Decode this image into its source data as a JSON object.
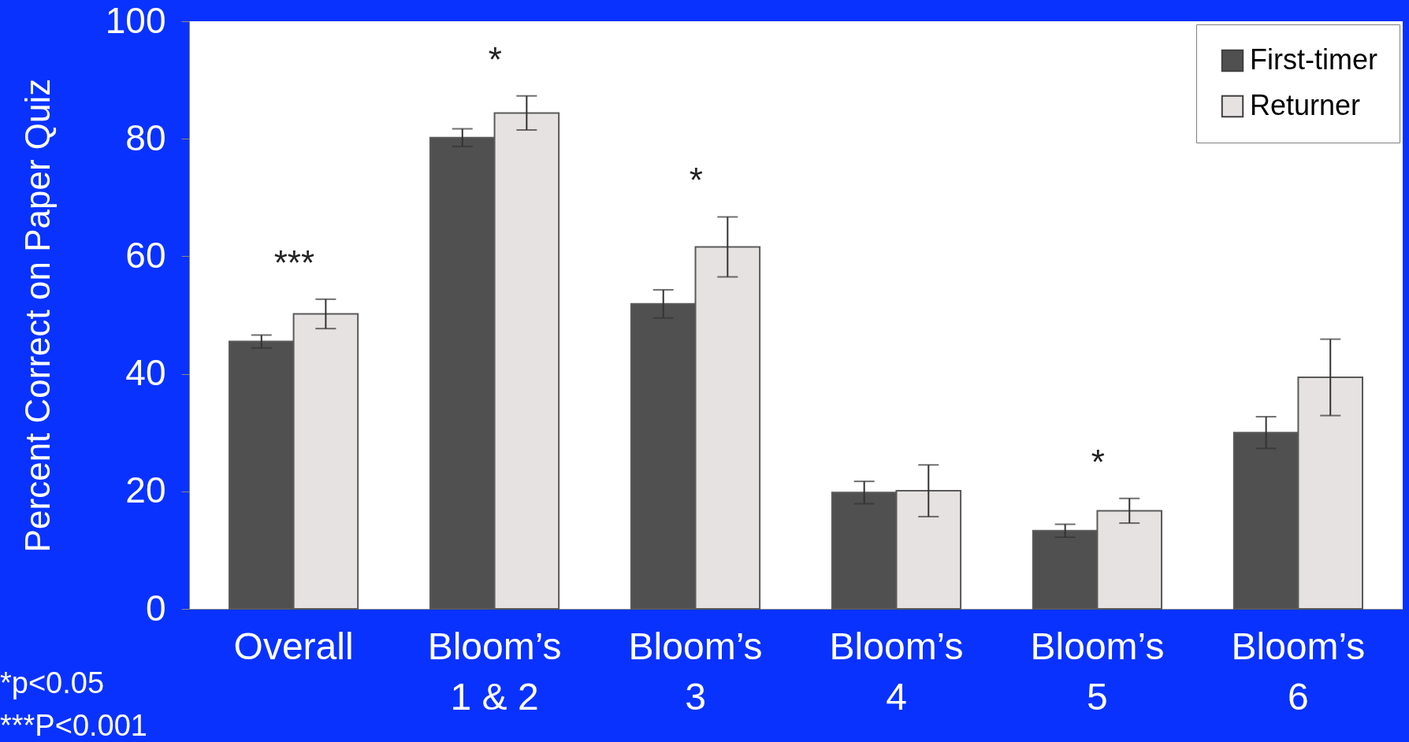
{
  "chart_data": {
    "type": "bar",
    "ylabel": "Percent Correct on Paper Quiz",
    "categories": [
      "Overall",
      "Bloom’s\n1 & 2",
      "Bloom’s\n3",
      "Bloom’s\n4",
      "Bloom’s\n5",
      "Bloom’s\n6"
    ],
    "series": [
      {
        "name": "First-timer",
        "color": "#505050",
        "values": [
          45.5,
          80.2,
          51.9,
          19.8,
          13.3,
          30.0
        ],
        "errors": [
          1.1,
          1.5,
          2.4,
          1.9,
          1.1,
          2.7
        ]
      },
      {
        "name": "Returner",
        "color": "#e6e2e2",
        "values": [
          50.2,
          84.4,
          61.6,
          20.1,
          16.7,
          39.4
        ],
        "errors": [
          2.5,
          2.9,
          5.1,
          4.4,
          2.1,
          6.5
        ],
        "value_labels": [
          "***",
          "*",
          "*",
          null,
          "*",
          null
        ]
      }
    ],
    "ylim": [
      0,
      100
    ],
    "yticks": [
      0,
      20,
      40,
      60,
      80,
      100
    ],
    "legend": "top right",
    "grid": false,
    "annotations": [
      "*p<0.05",
      "***P<0.001"
    ]
  }
}
